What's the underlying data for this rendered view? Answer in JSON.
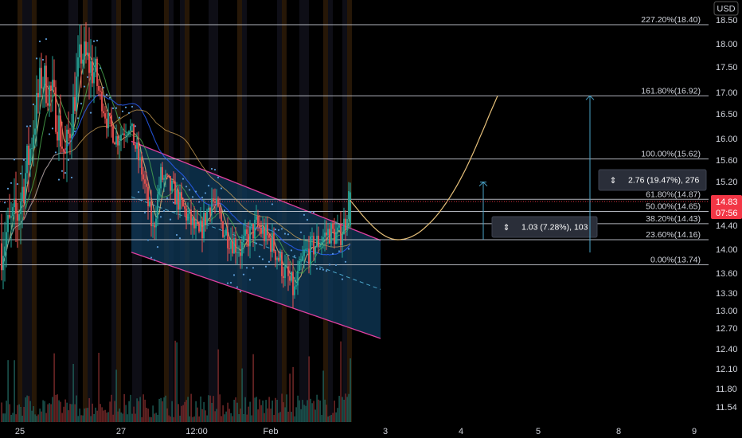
{
  "chart_data": {
    "type": "candlestick",
    "currency": "USD",
    "y_ticks": [
      18.5,
      18.0,
      17.5,
      17.0,
      16.5,
      16.0,
      15.6,
      15.2,
      14.8,
      14.4,
      14.0,
      13.6,
      13.3,
      13.0,
      12.7,
      12.4,
      12.1,
      11.8,
      11.54
    ],
    "y_tick_labels": [
      "18.50",
      "18.00",
      "17.50",
      "17.00",
      "16.50",
      "16.00",
      "15.60",
      "15.20",
      "14.80",
      "14.40",
      "14.00",
      "13.60",
      "13.30",
      "13.00",
      "12.70",
      "12.40",
      "12.10",
      "11.80",
      "11.54"
    ],
    "x_ticks": [
      "25",
      "27",
      "12:00",
      "Feb",
      "3",
      "4",
      "5",
      "8",
      "9"
    ],
    "current_price": {
      "value": 14.83,
      "label": "14.83",
      "countdown": "07:56",
      "color": "#f23645"
    },
    "fib_levels": [
      {
        "ratio": "227.20%",
        "price": 18.4,
        "label": "227.20%(18.40)"
      },
      {
        "ratio": "161.80%",
        "price": 16.92,
        "label": "161.80%(16.92)"
      },
      {
        "ratio": "100.00%",
        "price": 15.62,
        "label": "100.00%(15.62)"
      },
      {
        "ratio": "61.80%",
        "price": 14.87,
        "label": "61.80%(14.87)"
      },
      {
        "ratio": "50.00%",
        "price": 14.65,
        "label": "50.00%(14.65)"
      },
      {
        "ratio": "38.20%",
        "price": 14.43,
        "label": "38.20%(14.43)"
      },
      {
        "ratio": "23.60%",
        "price": 14.16,
        "label": "23.60%(14.16)"
      },
      {
        "ratio": "0.00%",
        "price": 13.74,
        "label": "0.00%(13.74)"
      }
    ],
    "measurements": [
      {
        "label": "1.03 (7.28%), 103",
        "from": 14.16,
        "to": 15.19
      },
      {
        "label": "2.76 (19.47%), 276",
        "from": 14.16,
        "to": 16.92
      }
    ],
    "channel": {
      "upper": {
        "start": 15.95,
        "end": 14.15
      },
      "lower": {
        "start": 13.95,
        "end": 12.55
      }
    },
    "colors": {
      "up": "#26a69a",
      "down": "#ef5350",
      "fib_line": "#cfd3dc",
      "channel_border": "#e040a0",
      "channel_fill": "#0f3a5a",
      "projection_curve": "#e6c07a",
      "measure_line": "#4aa3c8",
      "ma_fast": "#e6c07a",
      "ma_slow": "#2962ff",
      "ma_mid": "#4caf50",
      "sar_dots": "#5b9bd5"
    }
  }
}
